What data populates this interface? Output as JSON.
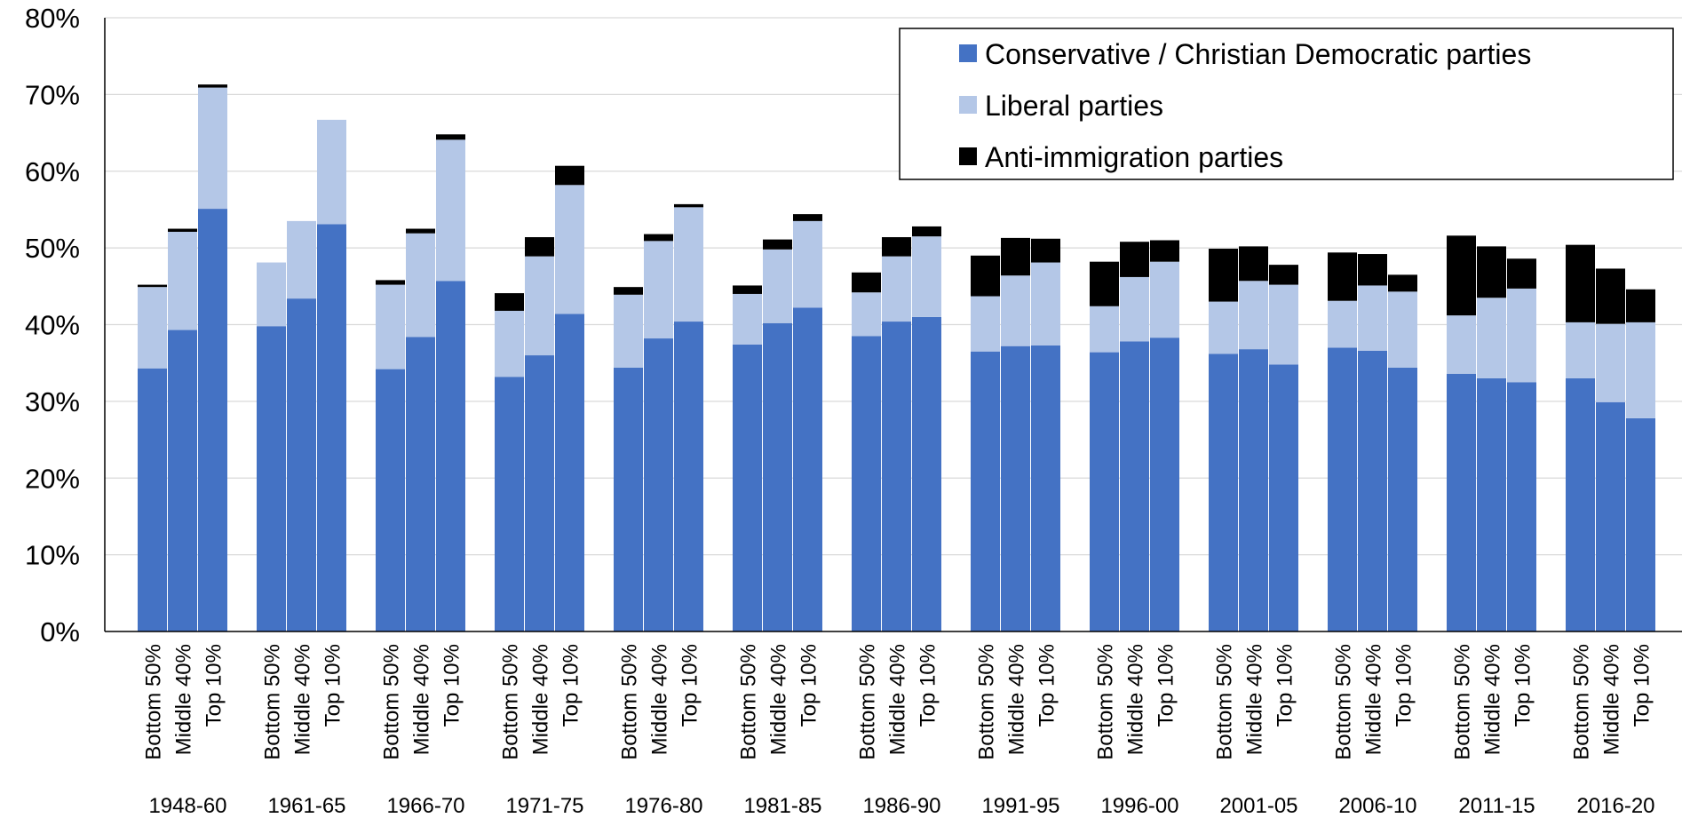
{
  "chart_data": {
    "type": "bar",
    "stacked": true,
    "title": "",
    "xlabel": "",
    "ylabel": "",
    "ylim": [
      0,
      80
    ],
    "yticks": [
      "0%",
      "10%",
      "20%",
      "30%",
      "40%",
      "50%",
      "60%",
      "70%",
      "80%"
    ],
    "grid": true,
    "legend_position": "top-right",
    "groups": [
      "1948-60",
      "1961-65",
      "1966-70",
      "1971-75",
      "1976-80",
      "1981-85",
      "1986-90",
      "1991-95",
      "1996-00",
      "2001-05",
      "2006-10",
      "2011-15",
      "2016-20"
    ],
    "subcategories": [
      "Bottom 50%",
      "Middle 40%",
      "Top 10%"
    ],
    "series": [
      {
        "name": "Conservative / Christian Democratic parties",
        "color": "#4472C4",
        "values": [
          [
            34.3,
            39.3,
            55.1
          ],
          [
            39.8,
            43.4,
            53.1
          ],
          [
            34.2,
            38.4,
            45.7
          ],
          [
            33.2,
            36.0,
            41.4
          ],
          [
            34.4,
            38.2,
            40.4
          ],
          [
            37.4,
            40.2,
            42.2
          ],
          [
            38.5,
            40.4,
            41.0
          ],
          [
            36.5,
            37.2,
            37.3
          ],
          [
            36.4,
            37.8,
            38.3
          ],
          [
            36.2,
            36.8,
            34.8
          ],
          [
            37.0,
            36.6,
            34.4
          ],
          [
            33.6,
            33.0,
            32.5
          ],
          [
            33.0,
            29.9,
            27.8
          ]
        ]
      },
      {
        "name": "Liberal parties",
        "color": "#B4C7E7",
        "values": [
          [
            10.6,
            12.8,
            15.8
          ],
          [
            8.3,
            10.1,
            13.6
          ],
          [
            11.0,
            13.5,
            18.4
          ],
          [
            8.6,
            12.9,
            16.8
          ],
          [
            9.5,
            12.7,
            14.9
          ],
          [
            6.6,
            9.6,
            11.3
          ],
          [
            5.7,
            8.5,
            10.5
          ],
          [
            7.2,
            9.2,
            10.8
          ],
          [
            6.0,
            8.4,
            9.9
          ],
          [
            6.8,
            8.9,
            10.4
          ],
          [
            6.1,
            8.5,
            9.9
          ],
          [
            7.6,
            10.5,
            12.2
          ],
          [
            7.3,
            10.2,
            12.5
          ]
        ]
      },
      {
        "name": "Anti-immigration parties",
        "color": "#000000",
        "values": [
          [
            0.3,
            0.4,
            0.4
          ],
          [
            0,
            0,
            0
          ],
          [
            0.6,
            0.6,
            0.7
          ],
          [
            2.3,
            2.5,
            2.5
          ],
          [
            1.0,
            0.9,
            0.4
          ],
          [
            1.1,
            1.3,
            0.9
          ],
          [
            2.6,
            2.5,
            1.3
          ],
          [
            5.3,
            4.9,
            3.1
          ],
          [
            5.8,
            4.6,
            2.8
          ],
          [
            6.9,
            4.5,
            2.6
          ],
          [
            6.3,
            4.1,
            2.2
          ],
          [
            10.4,
            6.7,
            3.9
          ],
          [
            10.1,
            7.2,
            4.3
          ]
        ]
      }
    ]
  }
}
